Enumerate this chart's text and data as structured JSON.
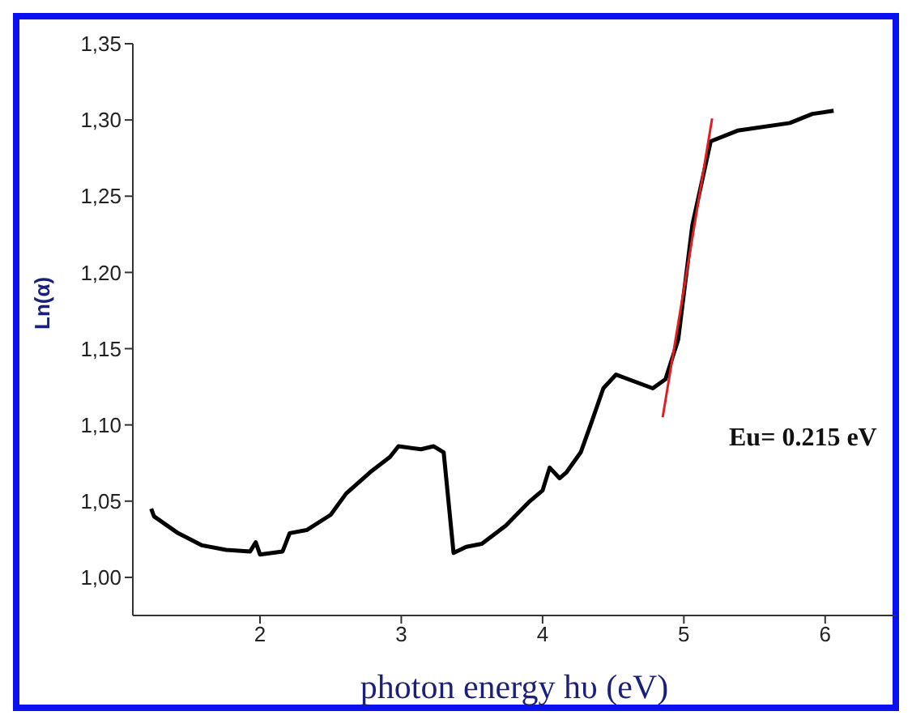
{
  "chart_data": {
    "type": "line",
    "xlabel": "photon energy hυ (eV)",
    "ylabel": "Ln(α)",
    "xlim": [
      1.1,
      6.5
    ],
    "ylim": [
      0.975,
      1.35
    ],
    "xticks": [
      2,
      3,
      4,
      5,
      6
    ],
    "yticks": [
      {
        "value": 1.0,
        "label": "1,00"
      },
      {
        "value": 1.05,
        "label": "1,05"
      },
      {
        "value": 1.1,
        "label": "1,10"
      },
      {
        "value": 1.15,
        "label": "1,15"
      },
      {
        "value": 1.2,
        "label": "1,20"
      },
      {
        "value": 1.25,
        "label": "1,25"
      },
      {
        "value": 1.3,
        "label": "1,30"
      },
      {
        "value": 1.35,
        "label": "1,35"
      }
    ],
    "annotations": [
      "Eu= 0.215 eV"
    ],
    "series": [
      {
        "color": "#000000",
        "x": [
          1.23,
          1.25,
          1.42,
          1.59,
          1.76,
          1.93,
          1.97,
          2.0,
          2.16,
          2.21,
          2.33,
          2.5,
          2.61,
          2.78,
          2.92,
          2.98,
          3.14,
          3.23,
          3.3,
          3.37,
          3.46,
          3.57,
          3.74,
          3.91,
          4.0,
          4.05,
          4.12,
          4.17,
          4.27,
          4.34,
          4.43,
          4.52,
          4.78,
          4.87,
          4.96,
          5.06,
          5.19,
          5.38,
          5.75,
          5.91,
          6.06
        ],
        "values": [
          1.045,
          1.04,
          1.029,
          1.021,
          1.018,
          1.017,
          1.023,
          1.015,
          1.017,
          1.029,
          1.031,
          1.041,
          1.055,
          1.069,
          1.079,
          1.086,
          1.084,
          1.086,
          1.082,
          1.016,
          1.02,
          1.022,
          1.034,
          1.05,
          1.057,
          1.072,
          1.065,
          1.069,
          1.082,
          1.1,
          1.124,
          1.133,
          1.124,
          1.13,
          1.156,
          1.231,
          1.286,
          1.293,
          1.298,
          1.304,
          1.306
        ]
      },
      {
        "color": "#e02020",
        "x": [
          4.85,
          5.2
        ],
        "values": [
          1.105,
          1.301
        ]
      }
    ]
  }
}
